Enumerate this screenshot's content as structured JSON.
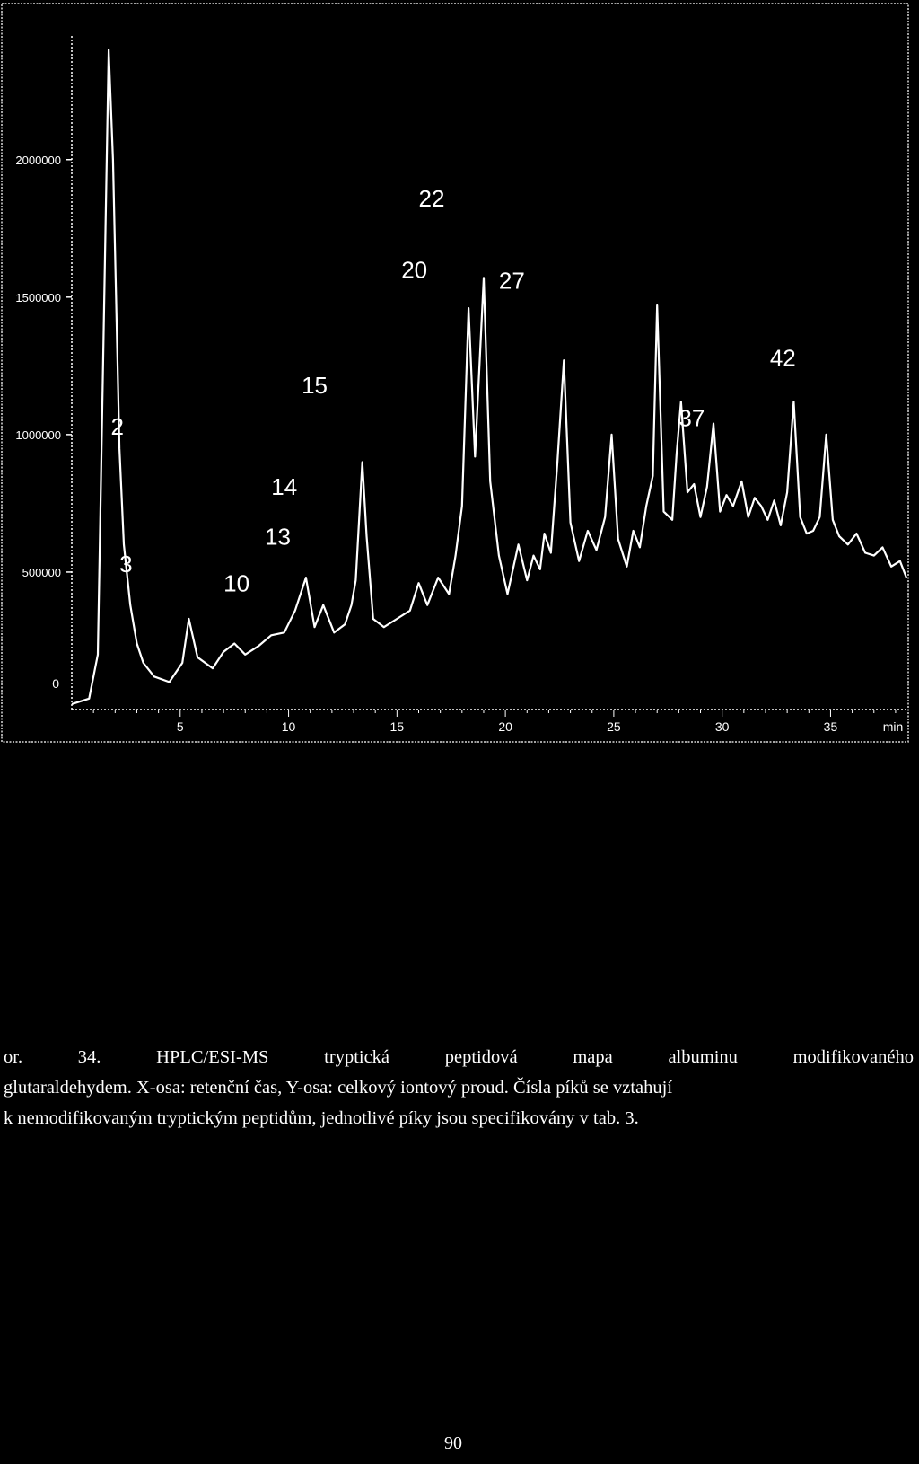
{
  "chart_data": {
    "type": "line",
    "title": "",
    "xlabel": "",
    "ylabel": "",
    "x_unit_label": "min",
    "xlim": [
      0,
      38.5
    ],
    "ylim": [
      0,
      2450000
    ],
    "x_ticks": [
      5,
      10,
      15,
      20,
      25,
      30,
      35
    ],
    "y_ticks": [
      {
        "value": 500000,
        "label": "500000"
      },
      {
        "value": 1000000,
        "label": "1000000"
      },
      {
        "value": 1500000,
        "label": "1500000"
      },
      {
        "value": 2000000,
        "label": "2000000"
      }
    ],
    "series": [
      {
        "color": "#ffffff",
        "points": [
          [
            0.0,
            20000
          ],
          [
            0.8,
            40000
          ],
          [
            1.2,
            200000
          ],
          [
            1.5,
            1500000
          ],
          [
            1.7,
            2400000
          ],
          [
            1.9,
            2000000
          ],
          [
            2.2,
            950000
          ],
          [
            2.4,
            600000
          ],
          [
            2.7,
            380000
          ],
          [
            3.0,
            240000
          ],
          [
            3.3,
            170000
          ],
          [
            3.8,
            120000
          ],
          [
            4.5,
            100000
          ],
          [
            5.1,
            170000
          ],
          [
            5.4,
            330000
          ],
          [
            5.8,
            190000
          ],
          [
            6.5,
            150000
          ],
          [
            7.0,
            210000
          ],
          [
            7.5,
            240000
          ],
          [
            8.0,
            200000
          ],
          [
            8.6,
            230000
          ],
          [
            9.2,
            270000
          ],
          [
            9.8,
            280000
          ],
          [
            10.3,
            360000
          ],
          [
            10.8,
            480000
          ],
          [
            11.2,
            300000
          ],
          [
            11.6,
            380000
          ],
          [
            12.1,
            280000
          ],
          [
            12.6,
            310000
          ],
          [
            12.9,
            380000
          ],
          [
            13.1,
            470000
          ],
          [
            13.4,
            900000
          ],
          [
            13.6,
            630000
          ],
          [
            13.9,
            330000
          ],
          [
            14.4,
            300000
          ],
          [
            15.0,
            330000
          ],
          [
            15.6,
            360000
          ],
          [
            16.0,
            460000
          ],
          [
            16.4,
            380000
          ],
          [
            16.9,
            480000
          ],
          [
            17.4,
            420000
          ],
          [
            17.7,
            560000
          ],
          [
            18.0,
            740000
          ],
          [
            18.3,
            1460000
          ],
          [
            18.6,
            920000
          ],
          [
            19.0,
            1570000
          ],
          [
            19.3,
            830000
          ],
          [
            19.7,
            560000
          ],
          [
            20.1,
            420000
          ],
          [
            20.6,
            600000
          ],
          [
            21.0,
            470000
          ],
          [
            21.3,
            560000
          ],
          [
            21.6,
            510000
          ],
          [
            21.8,
            640000
          ],
          [
            22.1,
            570000
          ],
          [
            22.4,
            900000
          ],
          [
            22.7,
            1270000
          ],
          [
            23.0,
            680000
          ],
          [
            23.4,
            540000
          ],
          [
            23.8,
            650000
          ],
          [
            24.2,
            580000
          ],
          [
            24.6,
            700000
          ],
          [
            24.9,
            1000000
          ],
          [
            25.2,
            620000
          ],
          [
            25.6,
            520000
          ],
          [
            25.9,
            650000
          ],
          [
            26.2,
            590000
          ],
          [
            26.5,
            740000
          ],
          [
            26.8,
            850000
          ],
          [
            27.0,
            1470000
          ],
          [
            27.3,
            720000
          ],
          [
            27.7,
            690000
          ],
          [
            27.9,
            930000
          ],
          [
            28.1,
            1120000
          ],
          [
            28.4,
            790000
          ],
          [
            28.7,
            820000
          ],
          [
            29.0,
            700000
          ],
          [
            29.3,
            810000
          ],
          [
            29.6,
            1040000
          ],
          [
            29.9,
            720000
          ],
          [
            30.2,
            780000
          ],
          [
            30.5,
            740000
          ],
          [
            30.9,
            830000
          ],
          [
            31.2,
            700000
          ],
          [
            31.5,
            770000
          ],
          [
            31.8,
            740000
          ],
          [
            32.1,
            690000
          ],
          [
            32.4,
            760000
          ],
          [
            32.7,
            670000
          ],
          [
            33.0,
            790000
          ],
          [
            33.3,
            1120000
          ],
          [
            33.6,
            700000
          ],
          [
            33.9,
            640000
          ],
          [
            34.2,
            650000
          ],
          [
            34.5,
            700000
          ],
          [
            34.8,
            1000000
          ],
          [
            35.1,
            690000
          ],
          [
            35.4,
            630000
          ],
          [
            35.8,
            600000
          ],
          [
            36.2,
            640000
          ],
          [
            36.6,
            570000
          ],
          [
            37.0,
            560000
          ],
          [
            37.4,
            590000
          ],
          [
            37.8,
            520000
          ],
          [
            38.2,
            540000
          ],
          [
            38.5,
            480000
          ]
        ]
      }
    ],
    "annotations": [
      {
        "label": "2",
        "x": 2.1,
        "y": 1000000
      },
      {
        "label": "3",
        "x": 2.5,
        "y": 500000
      },
      {
        "label": "10",
        "x": 7.6,
        "y": 430000
      },
      {
        "label": "13",
        "x": 9.5,
        "y": 600000
      },
      {
        "label": "14",
        "x": 9.8,
        "y": 780000
      },
      {
        "label": "15",
        "x": 11.2,
        "y": 1150000
      },
      {
        "label": "20",
        "x": 15.8,
        "y": 1570000
      },
      {
        "label": "22",
        "x": 16.6,
        "y": 1830000
      },
      {
        "label": "27",
        "x": 20.3,
        "y": 1530000
      },
      {
        "label": "37",
        "x": 28.6,
        "y": 1030000
      },
      {
        "label": "42",
        "x": 32.8,
        "y": 1250000
      }
    ],
    "grid": false,
    "legend": "none"
  },
  "axis_zero_label": "0",
  "caption": {
    "line1": [
      "or.",
      "34.",
      "HPLC/ESI-MS",
      "tryptická",
      "peptidová",
      "mapa",
      "albuminu",
      "modifikovaného"
    ],
    "line2": "glutaraldehydem. X-osa: retenční čas, Y-osa: celkový iontový proud. Čísla píků se vztahují",
    "line3": "k nemodifikovaným tryptickým peptidům, jednotlivé píky jsou specifikovány v tab. 3."
  },
  "page_number": "90"
}
